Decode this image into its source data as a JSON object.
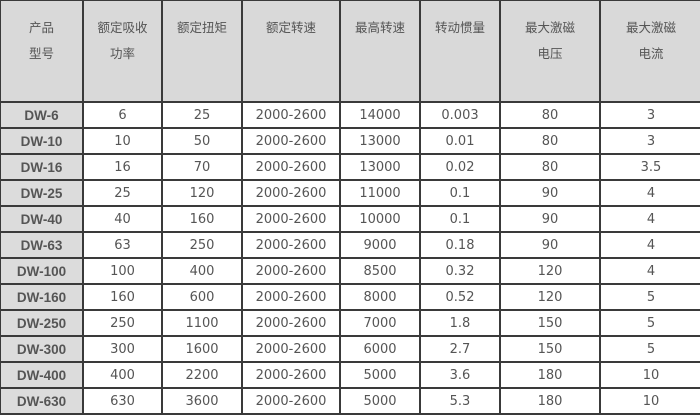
{
  "headers": [
    [
      "产品",
      "型号"
    ],
    [
      "额定吸收",
      "功率"
    ],
    [
      "额定扭矩"
    ],
    [
      "额定转速"
    ],
    [
      "最高转速"
    ],
    [
      "转动惯量"
    ],
    [
      "最大激磁",
      "电压"
    ],
    [
      "最大激磁",
      "电流"
    ]
  ],
  "rows": [
    [
      "DW-6",
      "6",
      "25",
      "2000-2600",
      "14000",
      "0.003",
      "80",
      "3"
    ],
    [
      "DW-10",
      "10",
      "50",
      "2000-2600",
      "13000",
      "0.01",
      "80",
      "3"
    ],
    [
      "DW-16",
      "16",
      "70",
      "2000-2600",
      "13000",
      "0.02",
      "80",
      "3.5"
    ],
    [
      "DW-25",
      "25",
      "120",
      "2000-2600",
      "11000",
      "0.1",
      "90",
      "4"
    ],
    [
      "DW-40",
      "40",
      "160",
      "2000-2600",
      "10000",
      "0.1",
      "90",
      "4"
    ],
    [
      "DW-63",
      "63",
      "250",
      "2000-2600",
      "9000",
      "0.18",
      "90",
      "4"
    ],
    [
      "DW-100",
      "100",
      "400",
      "2000-2600",
      "8500",
      "0.32",
      "120",
      "4"
    ],
    [
      "DW-160",
      "160",
      "600",
      "2000-2600",
      "8000",
      "0.52",
      "120",
      "5"
    ],
    [
      "DW-250",
      "250",
      "1100",
      "2000-2600",
      "7000",
      "1.8",
      "150",
      "5"
    ],
    [
      "DW-300",
      "300",
      "1600",
      "2000-2600",
      "6000",
      "2.7",
      "150",
      "5"
    ],
    [
      "DW-400",
      "400",
      "2200",
      "2000-2600",
      "5000",
      "3.6",
      "180",
      "10"
    ],
    [
      "DW-630",
      "630",
      "3600",
      "2000-2600",
      "5000",
      "5.3",
      "180",
      "10"
    ]
  ]
}
